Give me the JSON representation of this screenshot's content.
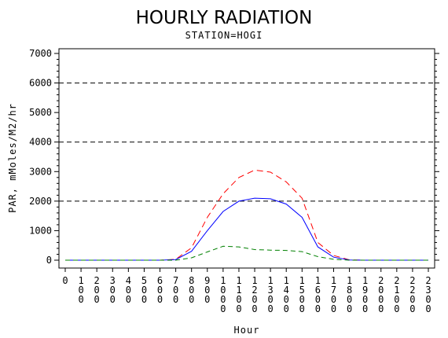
{
  "chart_data": {
    "type": "line",
    "title": "HOURLY RADIATION",
    "subtitle": "STATION=HOGI",
    "xlabel": "Hour",
    "ylabel": "PAR, mMoles/M2/hr",
    "xlim": [
      0,
      2300
    ],
    "ylim": [
      0,
      7000
    ],
    "yticks": [
      0,
      1000,
      2000,
      3000,
      4000,
      5000,
      6000,
      7000
    ],
    "reference_lines": [
      2000,
      4000,
      6000
    ],
    "x": [
      0,
      100,
      200,
      300,
      400,
      500,
      600,
      700,
      800,
      900,
      1000,
      1100,
      1200,
      1300,
      1400,
      1500,
      1600,
      1700,
      1800,
      1900,
      2000,
      2100,
      2200,
      2300
    ],
    "x_tick_labels": [
      "0",
      "100",
      "200",
      "300",
      "400",
      "500",
      "600",
      "700",
      "800",
      "900",
      "1000",
      "1100",
      "1200",
      "1300",
      "1400",
      "1500",
      "1600",
      "1700",
      "1800",
      "1900",
      "2000",
      "2100",
      "2200",
      "2300"
    ],
    "series": [
      {
        "color": "#ff0000",
        "dash": "8,5",
        "values": [
          0,
          0,
          0,
          0,
          0,
          0,
          0,
          30,
          420,
          1450,
          2250,
          2800,
          3050,
          2980,
          2650,
          2100,
          600,
          160,
          10,
          0,
          0,
          0,
          0,
          0
        ]
      },
      {
        "color": "#0000ff",
        "dash": "",
        "values": [
          0,
          0,
          0,
          0,
          0,
          0,
          0,
          20,
          300,
          1000,
          1650,
          2000,
          2100,
          2080,
          1900,
          1450,
          450,
          100,
          5,
          0,
          0,
          0,
          0,
          0
        ]
      },
      {
        "color": "#008000",
        "dash": "6,4",
        "values": [
          0,
          0,
          0,
          0,
          0,
          0,
          0,
          0,
          80,
          280,
          470,
          450,
          360,
          340,
          330,
          290,
          120,
          30,
          0,
          0,
          0,
          0,
          0,
          0
        ]
      }
    ]
  }
}
